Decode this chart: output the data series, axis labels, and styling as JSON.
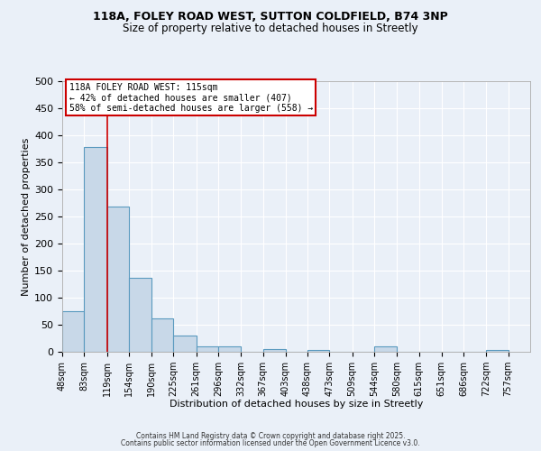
{
  "title_line1": "118A, FOLEY ROAD WEST, SUTTON COLDFIELD, B74 3NP",
  "title_line2": "Size of property relative to detached houses in Streetly",
  "xlabel": "Distribution of detached houses by size in Streetly",
  "ylabel": "Number of detached properties",
  "bar_left_edges": [
    48,
    83,
    119,
    154,
    190,
    225,
    261,
    296,
    332,
    367,
    403,
    438,
    473,
    509,
    544,
    580,
    615,
    651,
    686,
    722
  ],
  "bar_widths": [
    35,
    36,
    35,
    36,
    35,
    36,
    35,
    36,
    35,
    36,
    35,
    35,
    36,
    35,
    36,
    35,
    36,
    35,
    36,
    35
  ],
  "bar_heights": [
    75,
    378,
    268,
    137,
    61,
    30,
    10,
    10,
    0,
    5,
    0,
    3,
    0,
    0,
    10,
    0,
    0,
    0,
    0,
    3
  ],
  "bar_facecolor": "#c8d8e8",
  "bar_edgecolor": "#5a9abf",
  "xlim_left": 48,
  "xlim_right": 792,
  "ylim_bottom": 0,
  "ylim_top": 500,
  "yticks": [
    0,
    50,
    100,
    150,
    200,
    250,
    300,
    350,
    400,
    450,
    500
  ],
  "xtick_labels": [
    "48sqm",
    "83sqm",
    "119sqm",
    "154sqm",
    "190sqm",
    "225sqm",
    "261sqm",
    "296sqm",
    "332sqm",
    "367sqm",
    "403sqm",
    "438sqm",
    "473sqm",
    "509sqm",
    "544sqm",
    "580sqm",
    "615sqm",
    "651sqm",
    "686sqm",
    "722sqm",
    "757sqm"
  ],
  "xtick_positions": [
    48,
    83,
    119,
    154,
    190,
    225,
    261,
    296,
    332,
    367,
    403,
    438,
    473,
    509,
    544,
    580,
    615,
    651,
    686,
    722,
    757
  ],
  "vline_x": 119,
  "vline_color": "#cc0000",
  "annotation_text_line1": "118A FOLEY ROAD WEST: 115sqm",
  "annotation_text_line2": "← 42% of detached houses are smaller (407)",
  "annotation_text_line3": "58% of semi-detached houses are larger (558) →",
  "bg_color": "#eaf0f8",
  "grid_color": "#ffffff",
  "footer_line1": "Contains HM Land Registry data © Crown copyright and database right 2025.",
  "footer_line2": "Contains public sector information licensed under the Open Government Licence v3.0."
}
